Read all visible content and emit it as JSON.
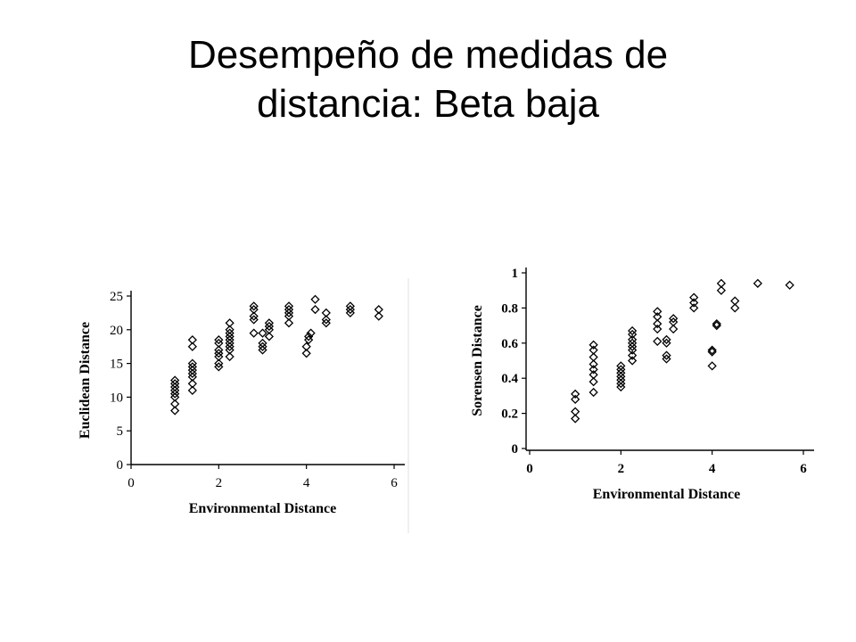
{
  "slide": {
    "title_line1": "Desempeño de medidas de",
    "title_line2": "distancia: Beta baja"
  },
  "chart_data": [
    {
      "type": "scatter",
      "xlabel": "Environmental Distance",
      "ylabel": "Euclidean Distance",
      "xlim": [
        0,
        6
      ],
      "ylim": [
        0,
        25
      ],
      "xticks": [
        "0",
        "2",
        "4",
        "6"
      ],
      "yticks": [
        "0",
        "5",
        "10",
        "15",
        "20",
        "25"
      ],
      "marker": "diamond",
      "grid": false,
      "series": [
        {
          "points": [
            [
              1.0,
              8.0
            ],
            [
              1.0,
              9.0
            ],
            [
              1.0,
              10.0
            ],
            [
              1.0,
              10.5
            ],
            [
              1.0,
              11.0
            ],
            [
              1.0,
              11.5
            ],
            [
              1.0,
              12.0
            ],
            [
              1.0,
              12.5
            ],
            [
              1.4,
              11.0
            ],
            [
              1.4,
              12.0
            ],
            [
              1.4,
              13.0
            ],
            [
              1.4,
              13.5
            ],
            [
              1.4,
              14.0
            ],
            [
              1.4,
              14.5
            ],
            [
              1.4,
              15.0
            ],
            [
              1.4,
              17.5
            ],
            [
              1.4,
              18.5
            ],
            [
              2.0,
              14.5
            ],
            [
              2.0,
              15.0
            ],
            [
              2.0,
              16.0
            ],
            [
              2.0,
              16.5
            ],
            [
              2.0,
              17.0
            ],
            [
              2.0,
              18.0
            ],
            [
              2.0,
              18.5
            ],
            [
              2.25,
              16.0
            ],
            [
              2.25,
              17.0
            ],
            [
              2.25,
              17.5
            ],
            [
              2.25,
              18.0
            ],
            [
              2.25,
              18.5
            ],
            [
              2.25,
              19.0
            ],
            [
              2.25,
              19.5
            ],
            [
              2.25,
              20.0
            ],
            [
              2.25,
              21.0
            ],
            [
              2.8,
              19.5
            ],
            [
              2.8,
              21.5
            ],
            [
              2.8,
              22.0
            ],
            [
              2.8,
              23.0
            ],
            [
              2.8,
              23.5
            ],
            [
              3.0,
              17.0
            ],
            [
              3.0,
              17.5
            ],
            [
              3.0,
              18.0
            ],
            [
              3.0,
              19.5
            ],
            [
              3.15,
              19.0
            ],
            [
              3.15,
              20.0
            ],
            [
              3.15,
              20.5
            ],
            [
              3.15,
              21.0
            ],
            [
              3.6,
              21.0
            ],
            [
              3.6,
              22.0
            ],
            [
              3.6,
              22.5
            ],
            [
              3.6,
              23.0
            ],
            [
              3.6,
              23.5
            ],
            [
              4.0,
              16.5
            ],
            [
              4.0,
              17.5
            ],
            [
              4.05,
              18.5
            ],
            [
              4.05,
              19.0
            ],
            [
              4.1,
              19.5
            ],
            [
              4.2,
              23.0
            ],
            [
              4.2,
              24.5
            ],
            [
              4.45,
              21.0
            ],
            [
              4.45,
              21.5
            ],
            [
              4.45,
              22.5
            ],
            [
              5.0,
              22.5
            ],
            [
              5.0,
              23.0
            ],
            [
              5.0,
              23.5
            ],
            [
              5.65,
              22.0
            ],
            [
              5.65,
              23.0
            ]
          ]
        }
      ]
    },
    {
      "type": "scatter",
      "xlabel": "Environmental Distance",
      "ylabel": "Sorensen Distance",
      "xlim": [
        0,
        6
      ],
      "ylim": [
        0,
        1
      ],
      "xticks": [
        "0",
        "2",
        "4",
        "6"
      ],
      "yticks": [
        "0",
        "0.2",
        "0.4",
        "0.6",
        "0.8",
        "1"
      ],
      "marker": "diamond",
      "grid": false,
      "series": [
        {
          "points": [
            [
              1.0,
              0.17
            ],
            [
              1.0,
              0.21
            ],
            [
              1.0,
              0.28
            ],
            [
              1.0,
              0.31
            ],
            [
              1.4,
              0.32
            ],
            [
              1.4,
              0.38
            ],
            [
              1.4,
              0.42
            ],
            [
              1.4,
              0.45
            ],
            [
              1.4,
              0.48
            ],
            [
              1.4,
              0.52
            ],
            [
              1.4,
              0.56
            ],
            [
              1.4,
              0.59
            ],
            [
              2.0,
              0.35
            ],
            [
              2.0,
              0.37
            ],
            [
              2.0,
              0.39
            ],
            [
              2.0,
              0.41
            ],
            [
              2.0,
              0.43
            ],
            [
              2.0,
              0.45
            ],
            [
              2.0,
              0.47
            ],
            [
              2.25,
              0.5
            ],
            [
              2.25,
              0.53
            ],
            [
              2.25,
              0.56
            ],
            [
              2.25,
              0.58
            ],
            [
              2.25,
              0.6
            ],
            [
              2.25,
              0.62
            ],
            [
              2.25,
              0.65
            ],
            [
              2.25,
              0.67
            ],
            [
              2.8,
              0.61
            ],
            [
              2.8,
              0.68
            ],
            [
              2.8,
              0.71
            ],
            [
              2.8,
              0.75
            ],
            [
              2.8,
              0.78
            ],
            [
              3.0,
              0.51
            ],
            [
              3.0,
              0.53
            ],
            [
              3.0,
              0.6
            ],
            [
              3.0,
              0.62
            ],
            [
              3.15,
              0.68
            ],
            [
              3.15,
              0.72
            ],
            [
              3.15,
              0.74
            ],
            [
              3.6,
              0.8
            ],
            [
              3.6,
              0.83
            ],
            [
              3.6,
              0.86
            ],
            [
              4.0,
              0.47
            ],
            [
              4.0,
              0.55
            ],
            [
              4.0,
              0.56
            ],
            [
              4.1,
              0.7
            ],
            [
              4.1,
              0.71
            ],
            [
              4.2,
              0.9
            ],
            [
              4.2,
              0.94
            ],
            [
              4.5,
              0.8
            ],
            [
              4.5,
              0.84
            ],
            [
              5.0,
              0.94
            ],
            [
              5.7,
              0.93
            ]
          ]
        }
      ]
    }
  ]
}
